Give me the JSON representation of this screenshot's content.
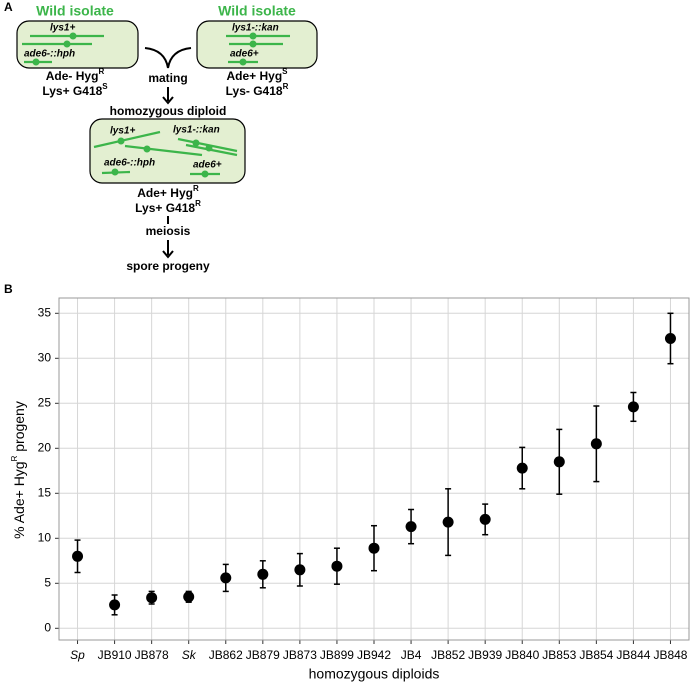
{
  "panel_labels": [
    "A",
    "B"
  ],
  "diagram": {
    "left": {
      "title": "Wild isolate",
      "genes": [
        "lys1+",
        "ade6-::hph"
      ],
      "phenotype": [
        [
          "Ade- Hyg",
          "R"
        ],
        [
          "Lys+ G418",
          "S"
        ]
      ]
    },
    "right": {
      "title": "Wild isolate",
      "genes": [
        "lys1-::kan",
        "ade6+"
      ],
      "phenotype": [
        [
          "Ade+ Hyg",
          "S"
        ],
        [
          "Lys- G418",
          "R"
        ]
      ]
    },
    "mating": "mating",
    "diploid": {
      "title": "homozygous diploid",
      "genes": [
        "lys1+",
        "lys1-::kan",
        "ade6-::hph",
        "ade6+"
      ],
      "phenotype": [
        [
          "Ade+ Hyg",
          "R"
        ],
        [
          "Lys+ G418",
          "R"
        ]
      ]
    },
    "meiosis": "meiosis",
    "progeny": "spore progeny"
  },
  "chart_data": {
    "type": "scatter",
    "x_label": "homozygous diploids",
    "y_label": [
      "% Ade+ Hyg",
      "R",
      " progeny"
    ],
    "categories": [
      "Sp",
      "JB910",
      "JB878",
      "Sk",
      "JB862",
      "JB879",
      "JB873",
      "JB899",
      "JB942",
      "JB4",
      "JB852",
      "JB939",
      "JB840",
      "JB853",
      "JB854",
      "JB844",
      "JB848"
    ],
    "italic_categories": [
      0,
      3
    ],
    "values": [
      8.0,
      2.6,
      3.4,
      3.5,
      5.6,
      6.0,
      6.5,
      6.9,
      8.9,
      11.3,
      11.8,
      12.1,
      17.8,
      18.5,
      20.5,
      24.6,
      32.2
    ],
    "errors": [
      1.8,
      1.1,
      0.7,
      0.6,
      1.5,
      1.5,
      1.8,
      2.0,
      2.5,
      1.9,
      3.7,
      1.7,
      2.3,
      3.6,
      4.2,
      1.6,
      2.8
    ],
    "color": "#000000",
    "ylim": [
      -1.3,
      36.7
    ],
    "yticks": [
      0,
      5,
      10,
      15,
      20,
      25,
      30,
      35
    ],
    "grid": true
  }
}
